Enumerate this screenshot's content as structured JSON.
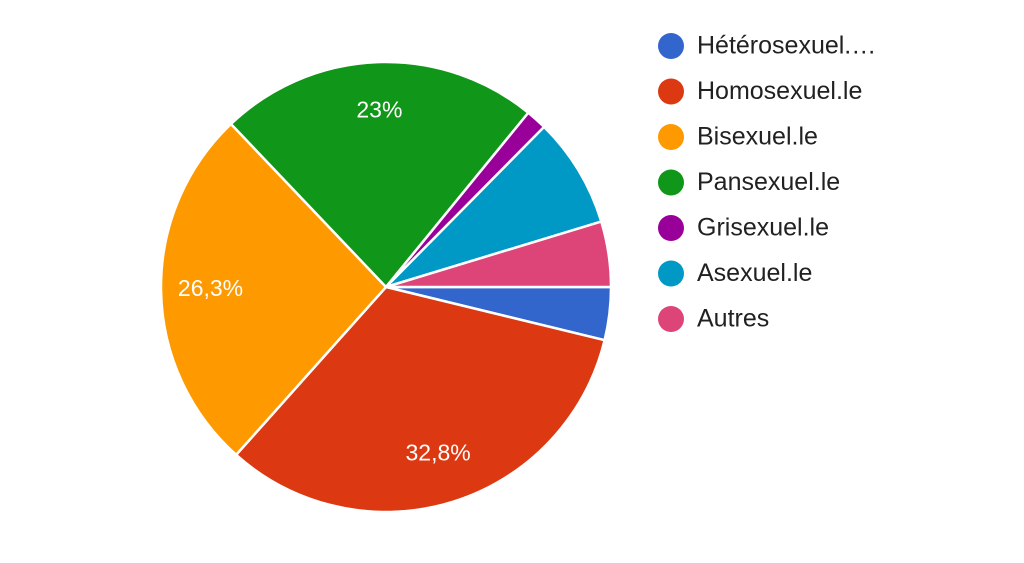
{
  "chart_data": {
    "type": "pie",
    "categories": [
      "Hétérosexuel.…",
      "Homosexuel.le",
      "Bisexuel.le",
      "Pansexuel.le",
      "Grisexuel.le",
      "Asexuel.le",
      "Autres"
    ],
    "values": [
      3.8,
      32.8,
      26.3,
      23,
      1.5,
      7.9,
      4.7
    ],
    "value_labels": [
      null,
      "32,8%",
      "26,3%",
      "23%",
      null,
      null,
      null
    ],
    "colors": [
      "#3366cc",
      "#dc3912",
      "#ff9900",
      "#109618",
      "#990099",
      "#0099c6",
      "#dd4477"
    ]
  }
}
